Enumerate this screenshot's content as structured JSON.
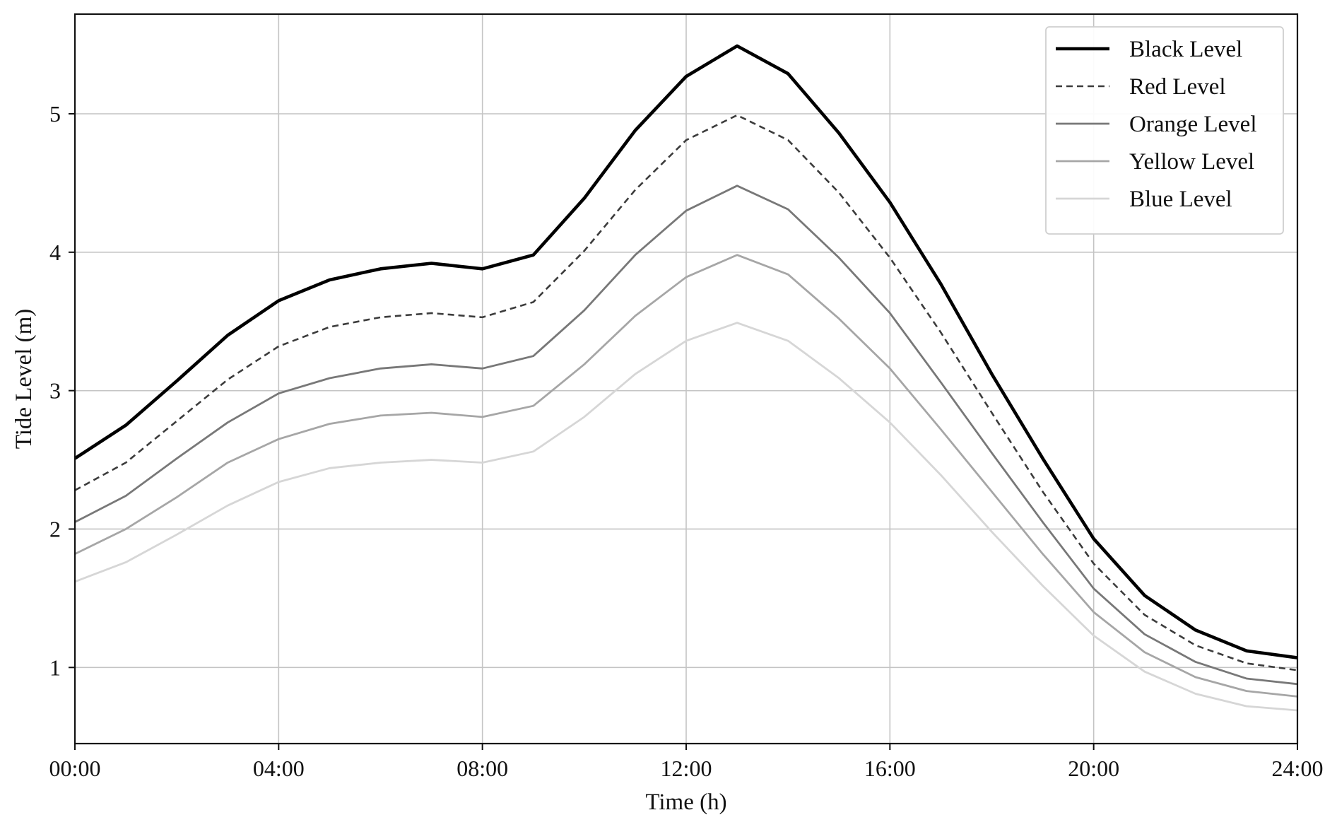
{
  "chart_data": {
    "type": "line",
    "title": "",
    "xlabel": "Time (h)",
    "ylabel": "Tide Level (m)",
    "xlim": [
      0,
      24
    ],
    "ylim": [
      0.45,
      5.72
    ],
    "grid": true,
    "legend_position": "top-right",
    "x_ticks": [
      {
        "value": 0,
        "label": "00:00"
      },
      {
        "value": 4,
        "label": "04:00"
      },
      {
        "value": 8,
        "label": "08:00"
      },
      {
        "value": 12,
        "label": "12:00"
      },
      {
        "value": 16,
        "label": "16:00"
      },
      {
        "value": 20,
        "label": "20:00"
      },
      {
        "value": 24,
        "label": "24:00"
      }
    ],
    "y_ticks": [
      {
        "value": 1,
        "label": "1"
      },
      {
        "value": 2,
        "label": "2"
      },
      {
        "value": 3,
        "label": "3"
      },
      {
        "value": 4,
        "label": "4"
      },
      {
        "value": 5,
        "label": "5"
      }
    ],
    "x": [
      0,
      1,
      2,
      3,
      4,
      5,
      6,
      7,
      8,
      9,
      10,
      11,
      12,
      13,
      14,
      15,
      16,
      17,
      18,
      19,
      20,
      21,
      22,
      23,
      24
    ],
    "series": [
      {
        "name": "Black Level",
        "color": "#000000",
        "style": "solid",
        "width": 4.6,
        "values": [
          2.51,
          2.75,
          3.07,
          3.4,
          3.65,
          3.8,
          3.88,
          3.92,
          3.88,
          3.98,
          4.39,
          4.88,
          5.27,
          5.49,
          5.29,
          4.86,
          4.36,
          3.77,
          3.12,
          2.51,
          1.93,
          1.52,
          1.27,
          1.12,
          1.07
        ]
      },
      {
        "name": "Red Level",
        "color": "#3c3c3c",
        "style": "dashed",
        "width": 2.6,
        "values": [
          2.28,
          2.48,
          2.78,
          3.08,
          3.32,
          3.46,
          3.53,
          3.56,
          3.53,
          3.64,
          4.01,
          4.45,
          4.81,
          4.99,
          4.81,
          4.43,
          3.96,
          3.42,
          2.84,
          2.27,
          1.75,
          1.38,
          1.16,
          1.03,
          0.98
        ]
      },
      {
        "name": "Orange Level",
        "color": "#787878",
        "style": "solid",
        "width": 2.8,
        "values": [
          2.05,
          2.24,
          2.51,
          2.77,
          2.98,
          3.09,
          3.16,
          3.19,
          3.16,
          3.25,
          3.58,
          3.98,
          4.3,
          4.48,
          4.31,
          3.96,
          3.56,
          3.06,
          2.55,
          2.05,
          1.57,
          1.24,
          1.04,
          0.92,
          0.88
        ]
      },
      {
        "name": "Yellow Level",
        "color": "#a6a6a6",
        "style": "solid",
        "width": 2.8,
        "values": [
          1.82,
          2.0,
          2.23,
          2.48,
          2.65,
          2.76,
          2.82,
          2.84,
          2.81,
          2.89,
          3.19,
          3.54,
          3.82,
          3.98,
          3.84,
          3.52,
          3.16,
          2.72,
          2.27,
          1.82,
          1.4,
          1.11,
          0.93,
          0.83,
          0.79
        ]
      },
      {
        "name": "Blue Level",
        "color": "#d6d6d6",
        "style": "solid",
        "width": 2.8,
        "values": [
          1.62,
          1.76,
          1.96,
          2.17,
          2.34,
          2.44,
          2.48,
          2.5,
          2.48,
          2.56,
          2.81,
          3.12,
          3.36,
          3.49,
          3.36,
          3.09,
          2.77,
          2.39,
          1.98,
          1.59,
          1.23,
          0.97,
          0.81,
          0.72,
          0.69
        ]
      }
    ]
  }
}
